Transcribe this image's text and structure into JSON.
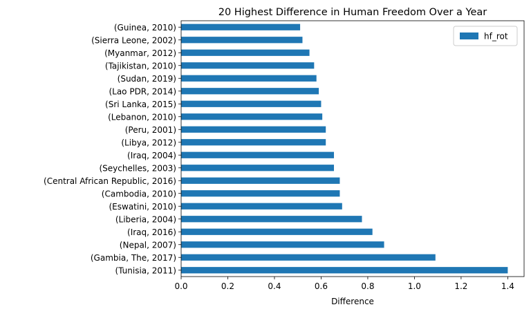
{
  "chart_data": {
    "type": "bar",
    "orientation": "horizontal",
    "title": "20 Highest Difference in Human Freedom Over a Year",
    "xlabel": "Difference",
    "ylabel": "",
    "xlim": [
      0,
      1.47
    ],
    "xticks": [
      0.0,
      0.2,
      0.4,
      0.6,
      0.8,
      1.0,
      1.2,
      1.4
    ],
    "xtick_labels": [
      "0.0",
      "0.2",
      "0.4",
      "0.6",
      "0.8",
      "1.0",
      "1.2",
      "1.4"
    ],
    "grid": false,
    "legend_position": "top-right",
    "categories": [
      "(Tunisia, 2011)",
      "(Gambia, The, 2017)",
      "(Nepal, 2007)",
      "(Iraq, 2016)",
      "(Liberia, 2004)",
      "(Eswatini, 2010)",
      "(Cambodia, 2010)",
      "(Central African Republic, 2016)",
      "(Seychelles, 2003)",
      "(Iraq, 2004)",
      "(Libya, 2012)",
      "(Peru, 2001)",
      "(Lebanon, 2010)",
      "(Sri Lanka, 2015)",
      "(Lao PDR, 2014)",
      "(Sudan, 2019)",
      "(Tajikistan, 2010)",
      "(Myanmar, 2012)",
      "(Sierra Leone, 2002)",
      "(Guinea, 2010)"
    ],
    "series": [
      {
        "name": "hf_rot",
        "color": "#1f77b4",
        "values": [
          1.4,
          1.09,
          0.87,
          0.82,
          0.775,
          0.69,
          0.68,
          0.68,
          0.655,
          0.655,
          0.62,
          0.62,
          0.605,
          0.6,
          0.59,
          0.58,
          0.57,
          0.55,
          0.52,
          0.51
        ]
      }
    ]
  }
}
